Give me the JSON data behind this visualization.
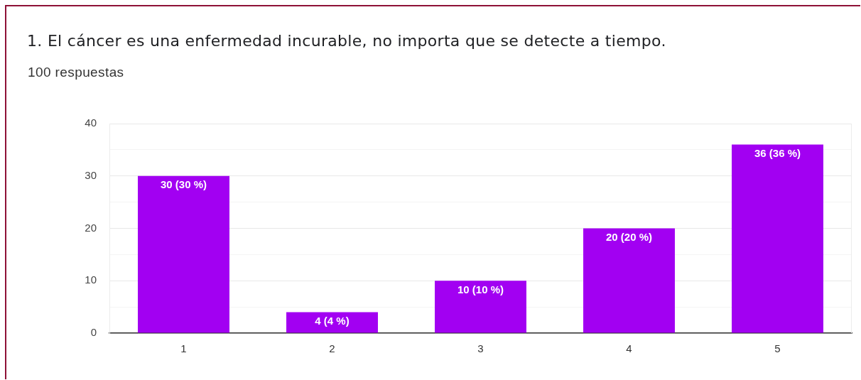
{
  "chart_data": {
    "type": "bar",
    "title": "1. El cáncer es una enfermedad incurable, no importa que se detecte a tiempo.",
    "subtitle": "100 respuestas",
    "categories": [
      "1",
      "2",
      "3",
      "4",
      "5"
    ],
    "values": [
      30,
      4,
      10,
      20,
      36
    ],
    "color": "#a200f2",
    "value_labels": [
      "30 (30 %)",
      "4 (4 %)",
      "10 (10 %)",
      "20 (20 %)",
      "36 (36 %)"
    ],
    "ylim": [
      0,
      40
    ],
    "yticks": [
      0,
      {
        "value": 5,
        "label": null
      },
      10,
      {
        "value": 15,
        "label": null
      },
      20,
      {
        "value": 25,
        "label": null
      },
      30,
      {
        "value": 35,
        "label": null
      },
      40
    ],
    "grid": "y"
  }
}
